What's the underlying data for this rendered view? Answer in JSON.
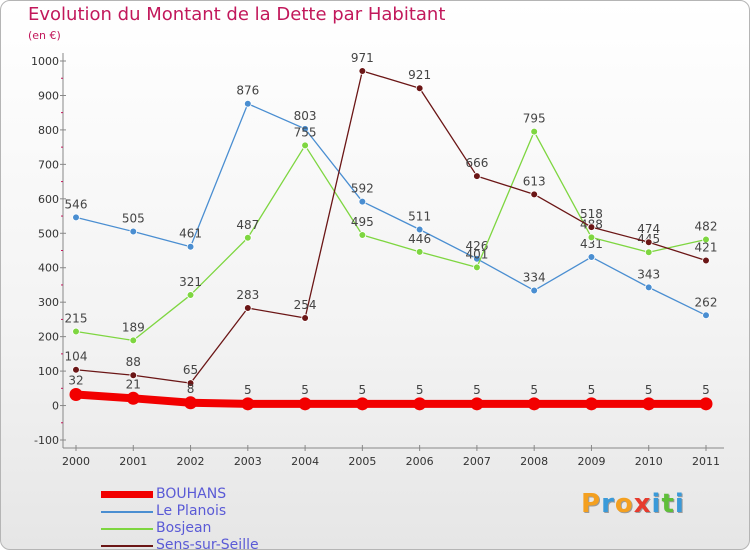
{
  "title": "Evolution du Montant de la Dette par Habitant",
  "subtitle": "(en €)",
  "logo": {
    "text": "Proxiti",
    "letter_colors": [
      "#f4a020",
      "#3a9ad9",
      "#f4a020",
      "#e63b2e",
      "#3a9ad9",
      "#5fbf3a",
      "#3a9ad9"
    ]
  },
  "chart_data": {
    "type": "line",
    "x": [
      "2000",
      "2001",
      "2002",
      "2003",
      "2004",
      "2005",
      "2006",
      "2007",
      "2008",
      "2009",
      "2010",
      "2011"
    ],
    "ylim": [
      -100,
      1000
    ],
    "yticks": [
      "-100",
      "0",
      "100",
      "200",
      "300",
      "400",
      "500",
      "600",
      "700",
      "800",
      "900",
      "1000"
    ],
    "grid": false,
    "legend_position": "bottom-left",
    "series": [
      {
        "name": "Le Planois",
        "color": "#4a8ed1",
        "values": [
          546,
          505,
          461,
          876,
          803,
          592,
          511,
          426,
          334,
          431,
          343,
          262
        ],
        "labels": [
          "546",
          "505",
          "461",
          "876",
          "803",
          "592",
          "511",
          "426",
          "334",
          "431",
          "343",
          "262"
        ]
      },
      {
        "name": "Bosjean",
        "color": "#7ed640",
        "values": [
          215,
          189,
          321,
          487,
          755,
          495,
          446,
          401,
          795,
          488,
          445,
          482
        ],
        "labels": [
          "215",
          "189",
          "321",
          "487",
          "755",
          "495",
          "446",
          "401",
          "795",
          "488",
          "445",
          "482"
        ]
      },
      {
        "name": "Sens-sur-Seille",
        "color": "#6b1616",
        "values": [
          104,
          88,
          65,
          283,
          254,
          971,
          921,
          666,
          613,
          518,
          474,
          421
        ],
        "labels": [
          "104",
          "88",
          "65",
          "283",
          "254",
          "971",
          "921",
          "666",
          "613",
          "518",
          "474",
          "421"
        ]
      },
      {
        "name": "BOUHANS",
        "color": "#f20000",
        "values": [
          32,
          21,
          8,
          5,
          5,
          5,
          5,
          5,
          5,
          5,
          5,
          5
        ],
        "labels": [
          "32",
          "21",
          "8",
          "5",
          "5",
          "5",
          "5",
          "5",
          "5",
          "5",
          "5",
          "5"
        ]
      }
    ],
    "legend": [
      {
        "name": "BOUHANS",
        "color": "#f20000"
      },
      {
        "name": "Le Planois",
        "color": "#4a8ed1"
      },
      {
        "name": "Bosjean",
        "color": "#7ed640"
      },
      {
        "name": "Sens-sur-Seille",
        "color": "#6b1616"
      }
    ]
  }
}
